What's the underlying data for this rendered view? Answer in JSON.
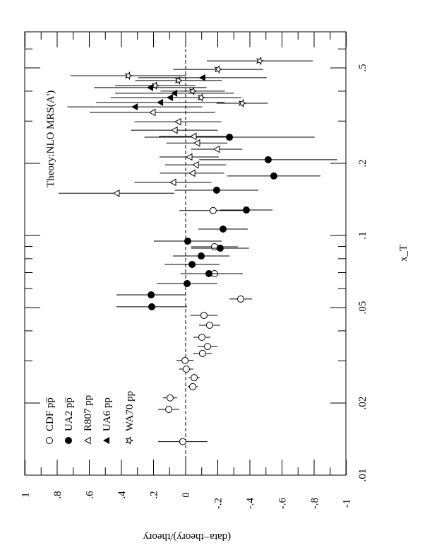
{
  "chart_data": {
    "type": "scatter",
    "orientation": "rotated-90",
    "xlabel": "x_T",
    "ylabel": "(data−theory)/theory",
    "annotation": "Theory:NLO MRS(A')",
    "xscale": "log",
    "xlim": [
      0.01,
      0.7
    ],
    "ylim": [
      -1,
      1
    ],
    "xticks": [
      {
        "v": 0.01,
        "label": ".01"
      },
      {
        "v": 0.02,
        "label": ".02"
      },
      {
        "v": 0.05,
        "label": ".05"
      },
      {
        "v": 0.1,
        "label": ".1"
      },
      {
        "v": 0.2,
        "label": ".2"
      },
      {
        "v": 0.5,
        "label": ".5"
      }
    ],
    "yticks": [
      {
        "v": 1,
        "label": "1"
      },
      {
        "v": 0.8,
        "label": ".8"
      },
      {
        "v": 0.6,
        "label": ".6"
      },
      {
        "v": 0.4,
        "label": ".4"
      },
      {
        "v": 0.2,
        "label": ".2"
      },
      {
        "v": 0,
        "label": "0"
      },
      {
        "v": -0.2,
        "label": "-.2"
      },
      {
        "v": -0.4,
        "label": "-.4"
      },
      {
        "v": -0.6,
        "label": "-.6"
      },
      {
        "v": -0.8,
        "label": "-.8"
      },
      {
        "v": -1,
        "label": "-1"
      }
    ],
    "reference_line": 0,
    "legend_position": "bottom-left",
    "series": [
      {
        "name": "CDF",
        "label": "CDF",
        "beam": "pp̅",
        "marker": "open-circle",
        "points": [
          [
            0.127,
            -0.171,
            0.21
          ],
          [
            0.0897,
            -0.18,
            0.145
          ],
          [
            0.0693,
            -0.18,
            0.176
          ],
          [
            0.0543,
            -0.343,
            0.07
          ],
          [
            0.0464,
            -0.114,
            0.084
          ],
          [
            0.0422,
            -0.149,
            0.066
          ],
          [
            0.0376,
            -0.101,
            0.053
          ],
          [
            0.0344,
            -0.136,
            0.062
          ],
          [
            0.0322,
            -0.105,
            0.057
          ],
          [
            0.0301,
            0.004,
            0.053
          ],
          [
            0.0277,
            -0.004,
            0.044
          ],
          [
            0.0255,
            -0.053,
            0.035
          ],
          [
            0.0234,
            -0.044,
            0.031
          ],
          [
            0.021,
            0.097,
            0.044
          ],
          [
            0.0188,
            0.105,
            0.066
          ],
          [
            0.0138,
            0.018,
            0.154
          ]
        ]
      },
      {
        "name": "UA2",
        "label": "UA2",
        "beam": "pp̅",
        "marker": "filled-circle",
        "points": [
          [
            0.1277,
            -0.378,
            0.163
          ],
          [
            0.1063,
            -0.233,
            0.154
          ],
          [
            0.0947,
            -0.013,
            0.211
          ],
          [
            0.0885,
            -0.215,
            0.18
          ],
          [
            0.0821,
            -0.097,
            0.176
          ],
          [
            0.0757,
            -0.04,
            0.171
          ],
          [
            0.0693,
            -0.145,
            0.176
          ],
          [
            0.063,
            -0.009,
            0.189
          ],
          [
            0.0565,
            0.215,
            0.215
          ],
          [
            0.0504,
            0.211,
            0.22
          ],
          [
            0.257,
            -0.273,
            0.53
          ],
          [
            0.207,
            -0.514,
            0.43
          ],
          [
            0.177,
            -0.549,
            0.29
          ],
          [
            0.1545,
            -0.193,
            0.26
          ]
        ]
      },
      {
        "name": "R807",
        "label": "R807",
        "beam": "pp",
        "marker": "open-triangle",
        "points": [
          [
            0.326,
            0.207,
            0.39
          ],
          [
            0.298,
            0.048,
            0.27
          ],
          [
            0.275,
            0.07,
            0.27
          ],
          [
            0.259,
            -0.048,
            0.215
          ],
          [
            0.243,
            -0.07,
            0.19
          ],
          [
            0.229,
            -0.193,
            0.16
          ],
          [
            0.2126,
            -0.022,
            0.185
          ],
          [
            0.197,
            -0.062,
            0.19
          ],
          [
            0.182,
            -0.04,
            0.2
          ],
          [
            0.1665,
            0.079,
            0.24
          ],
          [
            0.15,
            0.431,
            0.36
          ]
        ]
      },
      {
        "name": "UA6",
        "label": "UA6",
        "beam": "pp",
        "marker": "filled-triangle",
        "points": [
          [
            0.455,
            -0.105,
            0.4
          ],
          [
            0.414,
            0.22,
            0.35
          ],
          [
            0.392,
            0.07,
            0.37
          ],
          [
            0.376,
            0.097,
            0.37
          ],
          [
            0.359,
            0.158,
            0.4
          ],
          [
            0.344,
            0.316,
            0.42
          ]
        ]
      },
      {
        "name": "WA70",
        "label": "WA70",
        "beam": "pp",
        "marker": "open-star",
        "points": [
          [
            0.535,
            -0.462,
            0.33
          ],
          [
            0.493,
            -0.202,
            0.28
          ],
          [
            0.464,
            0.356,
            0.36
          ],
          [
            0.443,
            0.044,
            0.27
          ],
          [
            0.422,
            0.189,
            0.25
          ],
          [
            0.4,
            -0.044,
            0.2
          ],
          [
            0.376,
            -0.097,
            0.25
          ],
          [
            0.356,
            -0.352,
            0.16
          ]
        ]
      }
    ]
  }
}
